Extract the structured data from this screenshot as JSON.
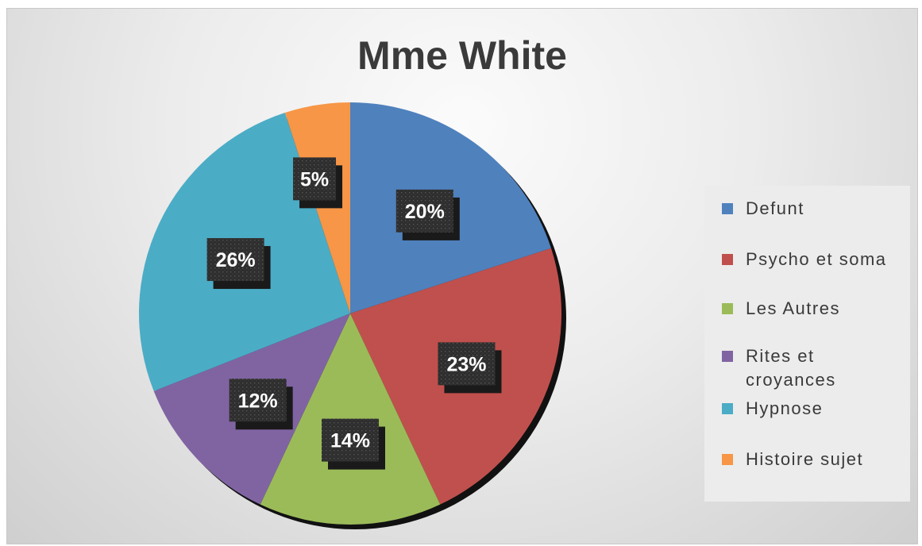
{
  "chart_data": {
    "type": "pie",
    "title": "Mme White",
    "slices": [
      {
        "label": "Defunt",
        "value": 20,
        "display": "20%",
        "color": "#4F81BD"
      },
      {
        "label": "Psycho et soma",
        "value": 23,
        "display": "23%",
        "color": "#C0504D"
      },
      {
        "label": "Les Autres",
        "value": 14,
        "display": "14%",
        "color": "#9BBB59"
      },
      {
        "label": "Rites et croyances",
        "value": 12,
        "display": "12%",
        "color": "#8064A2"
      },
      {
        "label": "Hypnose",
        "value": 26,
        "display": "26%",
        "color": "#4BACC6"
      },
      {
        "label": "Histoire sujet",
        "value": 5,
        "display": "5%",
        "color": "#F79646"
      }
    ],
    "legend_position": "right",
    "data_label_style": "dark patterned boxes with white bold text",
    "start_angle": "12 o'clock, clockwise"
  }
}
